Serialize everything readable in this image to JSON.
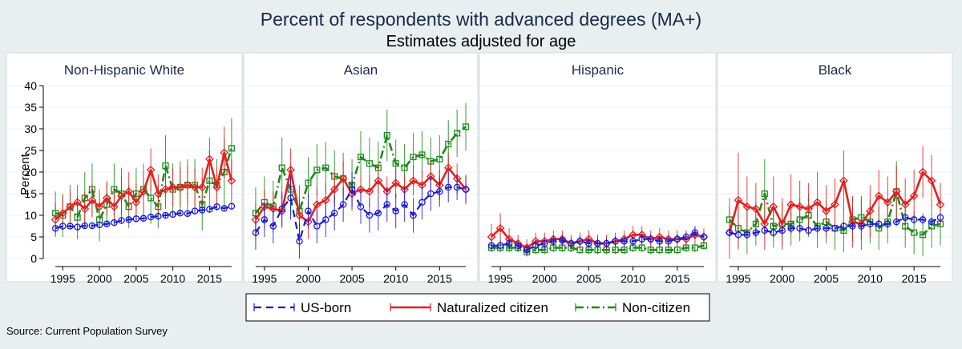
{
  "chart_data": {
    "type": "line",
    "title": "Percent of respondents with advanced degrees (MA+)",
    "subtitle": "Estimates adjusted for age",
    "ylabel": "Percent",
    "ylim": [
      0,
      40
    ],
    "yticks": [
      0,
      5,
      10,
      15,
      20,
      25,
      30,
      35,
      40
    ],
    "xlim": [
      1993,
      2019
    ],
    "xticks": [
      1995,
      2000,
      2005,
      2010,
      2015
    ],
    "years": [
      1994,
      1995,
      1996,
      1997,
      1998,
      1999,
      2000,
      2001,
      2002,
      2003,
      2004,
      2005,
      2006,
      2007,
      2008,
      2009,
      2010,
      2011,
      2012,
      2013,
      2014,
      2015,
      2016,
      2017,
      2018
    ],
    "legend": [
      "US-born",
      "Naturalized citizen",
      "Non-citizen"
    ],
    "colors": {
      "us_born": "#1a1ad6",
      "naturalized": "#e51f1f",
      "noncitizen": "#1a8a1a"
    },
    "source": "Source: Current Population Survey",
    "panels": [
      {
        "name": "Non-Hispanic White",
        "series": [
          {
            "key": "us_born",
            "name": "US-born",
            "values": [
              7,
              7.5,
              7.5,
              7.3,
              7.6,
              7.6,
              7.8,
              8,
              8.3,
              8.8,
              9,
              9.2,
              9.3,
              9.6,
              9.8,
              10,
              10.2,
              10.5,
              10.4,
              11,
              11.2,
              11.4,
              12,
              11.6,
              12.1
            ],
            "err": [
              0.6,
              0.6,
              0.6,
              0.6,
              0.6,
              0.6,
              0.6,
              0.6,
              0.6,
              0.6,
              0.6,
              0.6,
              0.6,
              0.6,
              0.6,
              0.6,
              0.6,
              0.6,
              0.6,
              0.6,
              0.6,
              0.6,
              0.6,
              0.6,
              0.6
            ]
          },
          {
            "key": "naturalized",
            "name": "Naturalized citizen",
            "values": [
              9,
              10.5,
              12,
              13,
              11.5,
              13.5,
              12,
              14,
              12,
              14.5,
              15.5,
              13,
              15.5,
              20.5,
              15,
              16,
              16.5,
              16.5,
              17,
              16.5,
              16.5,
              23,
              16.5,
              24.5,
              18
            ],
            "err": [
              4,
              4,
              4,
              4,
              4,
              4,
              4,
              4,
              4,
              4.5,
              4.5,
              4.5,
              4.5,
              5,
              4.5,
              4.5,
              4.5,
              4.5,
              4.5,
              4.5,
              4.5,
              5,
              4.5,
              6,
              5
            ]
          },
          {
            "key": "noncitizen",
            "name": "Non-citizen",
            "values": [
              10.5,
              10,
              12,
              9.5,
              14,
              16,
              9,
              12.5,
              16,
              15,
              12,
              15,
              16,
              14,
              12,
              21.5,
              16,
              16.5,
              17,
              17,
              12.5,
              18,
              17,
              20,
              25.5
            ],
            "err": [
              5,
              5,
              5,
              5,
              6,
              6,
              5,
              5,
              6,
              6,
              5,
              6,
              6,
              6,
              5,
              7,
              6,
              6,
              6,
              6,
              6,
              7,
              6,
              8,
              7
            ]
          }
        ]
      },
      {
        "name": "Asian",
        "series": [
          {
            "key": "us_born",
            "name": "US-born",
            "values": [
              6,
              9,
              7.5,
              11.5,
              14,
              4,
              11,
              7.5,
              9,
              10.5,
              12.5,
              16,
              12,
              10,
              10.5,
              12.5,
              11,
              12.5,
              10,
              13,
              15,
              15.5,
              16.5,
              16.5,
              16
            ],
            "err": [
              4,
              4,
              4,
              4,
              5,
              4,
              4,
              4,
              4,
              4,
              4,
              4,
              4,
              4,
              4,
              4,
              4,
              4,
              4,
              4,
              4,
              3.5,
              3.5,
              3,
              3
            ]
          },
          {
            "key": "naturalized",
            "name": "Naturalized citizen",
            "values": [
              9,
              12,
              11.5,
              11,
              20.5,
              10,
              8.5,
              12.5,
              13.5,
              16,
              18.5,
              15,
              16,
              15.5,
              18,
              15.5,
              17.5,
              16,
              18,
              17,
              19,
              17,
              21,
              18.5,
              16
            ],
            "err": [
              4,
              4,
              4,
              4,
              5,
              4,
              4,
              4,
              4,
              4,
              4,
              3.5,
              3.5,
              3.5,
              3.5,
              3.5,
              3.5,
              3.5,
              3.5,
              3.5,
              3.5,
              3.5,
              3.5,
              3.5,
              3.5
            ]
          },
          {
            "key": "noncitizen",
            "name": "Non-citizen",
            "values": [
              10.5,
              13,
              12,
              21,
              16,
              11,
              17.5,
              20.5,
              21,
              19,
              18.5,
              17,
              23.5,
              22,
              21,
              28.5,
              22,
              21,
              23.5,
              24,
              22.5,
              23,
              26.5,
              29,
              30.5
            ],
            "err": [
              6,
              6,
              6,
              7,
              6,
              6,
              6,
              6,
              6,
              6,
              6,
              6,
              6,
              6,
              6,
              6,
              5.5,
              5.5,
              5.5,
              5.5,
              5.5,
              5.5,
              5.5,
              5.5,
              5.5
            ]
          }
        ]
      },
      {
        "name": "Hispanic",
        "series": [
          {
            "key": "us_born",
            "name": "US-born",
            "values": [
              3,
              3,
              3.5,
              3,
              2,
              3,
              3.5,
              4,
              4.2,
              3.5,
              4,
              3.5,
              3.5,
              3.5,
              4,
              4,
              4,
              4.5,
              4.5,
              4,
              4,
              4.5,
              5,
              6,
              5
            ],
            "err": [
              1.2,
              1.2,
              1.2,
              1.2,
              1.2,
              1.2,
              1.2,
              1.2,
              1.2,
              1.2,
              1.2,
              1.2,
              1.2,
              1.2,
              1.2,
              1.2,
              1.2,
              1.2,
              1.2,
              1.2,
              1.2,
              1.2,
              1.2,
              1.5,
              1.2
            ]
          },
          {
            "key": "naturalized",
            "name": "Naturalized citizen",
            "values": [
              5,
              7,
              4.5,
              3.5,
              2.5,
              4,
              4,
              4.5,
              4.5,
              3.5,
              4,
              4.5,
              3.5,
              3.5,
              4,
              4.5,
              5.5,
              5.5,
              4.5,
              5,
              4.5,
              4.5,
              4.5,
              5.5,
              5
            ],
            "err": [
              3,
              3.5,
              2.5,
              2,
              2,
              2,
              2,
              2,
              2,
              2,
              2,
              2,
              2,
              2,
              2,
              2,
              2,
              2,
              2,
              2,
              2,
              2,
              2,
              2,
              2
            ]
          },
          {
            "key": "noncitizen",
            "name": "Non-citizen",
            "values": [
              2.5,
              2.5,
              2.5,
              2.5,
              1.5,
              2,
              2,
              2.5,
              2.5,
              2.5,
              2,
              2,
              2,
              2,
              2,
              2,
              2.5,
              2.5,
              2,
              2,
              2,
              2,
              2.5,
              2.5,
              3
            ],
            "err": [
              1,
              1,
              1,
              1,
              1,
              1,
              1,
              1,
              1,
              1,
              1,
              1,
              1,
              1,
              1,
              1,
              1,
              1,
              1,
              1,
              1,
              1,
              1,
              1,
              1
            ]
          }
        ]
      },
      {
        "name": "Black",
        "series": [
          {
            "key": "us_born",
            "name": "US-born",
            "values": [
              6,
              5.5,
              5.5,
              6,
              6.5,
              6,
              6.5,
              7,
              7,
              6.5,
              7,
              7,
              7,
              7.5,
              7.5,
              7.5,
              8,
              8,
              8,
              8.5,
              9.5,
              9,
              9,
              8.5,
              9.5
            ],
            "err": [
              1,
              1,
              1,
              1,
              1,
              1,
              1,
              1,
              1,
              1,
              1,
              1,
              1,
              1,
              1,
              1,
              1,
              1,
              1,
              1,
              1,
              1,
              1,
              1,
              1
            ]
          },
          {
            "key": "naturalized",
            "name": "Naturalized citizen",
            "values": [
              6,
              13.5,
              12,
              11.5,
              8,
              12,
              8,
              12.5,
              12,
              11.5,
              13,
              11,
              12.5,
              18,
              8.5,
              8,
              11,
              14.5,
              13,
              15.5,
              12.5,
              14.5,
              20,
              18,
              12.5
            ],
            "err": [
              6,
              11,
              7,
              6,
              6,
              7,
              6,
              7,
              6,
              6,
              7,
              6,
              6,
              7,
              6,
              6,
              6,
              6,
              6,
              6,
              6,
              6,
              6,
              6,
              5
            ]
          },
          {
            "key": "noncitizen",
            "name": "Non-citizen",
            "values": [
              9,
              7,
              6,
              8,
              15,
              7.5,
              8,
              8,
              9,
              10,
              7.5,
              8.5,
              7,
              6.5,
              9,
              9.5,
              8.5,
              7,
              8.5,
              15.5,
              7.5,
              6,
              5.5,
              7.5,
              8
            ],
            "err": [
              5,
              5,
              5,
              5,
              8,
              5,
              5,
              5,
              5,
              5,
              5,
              5,
              5,
              5,
              5,
              5,
              5,
              5,
              5,
              7,
              5,
              5,
              5,
              5,
              5
            ]
          }
        ]
      }
    ]
  }
}
